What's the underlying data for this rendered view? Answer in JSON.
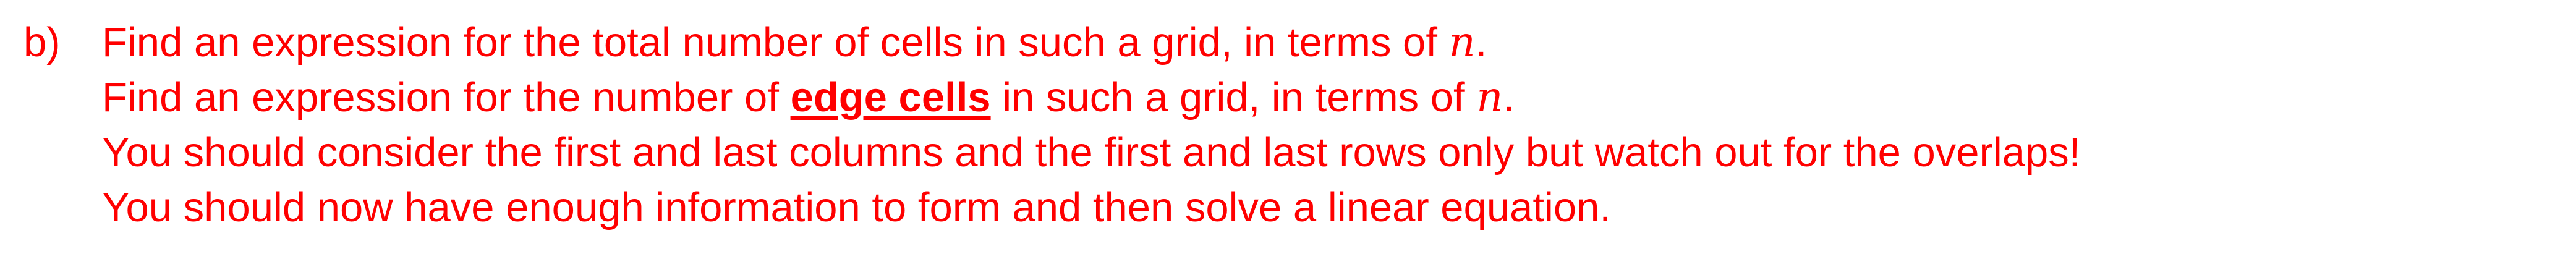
{
  "question": {
    "label": "b)",
    "line1": {
      "text": "Find an expression for the total number of cells in such a grid, in terms of ",
      "variable": "n",
      "end": "."
    },
    "line2": {
      "before": "Find an expression for the number of ",
      "emphasis": "edge cells",
      "after": " in such a grid, in terms of ",
      "variable": "n",
      "end": "."
    },
    "line3": {
      "text": "You should consider the first and last columns and the first and last rows only but watch out for the overlaps!"
    },
    "line4": {
      "text": "You should now have enough information to form and then solve a linear equation."
    }
  },
  "colors": {
    "text": "#ff0000",
    "background": "#ffffff"
  }
}
